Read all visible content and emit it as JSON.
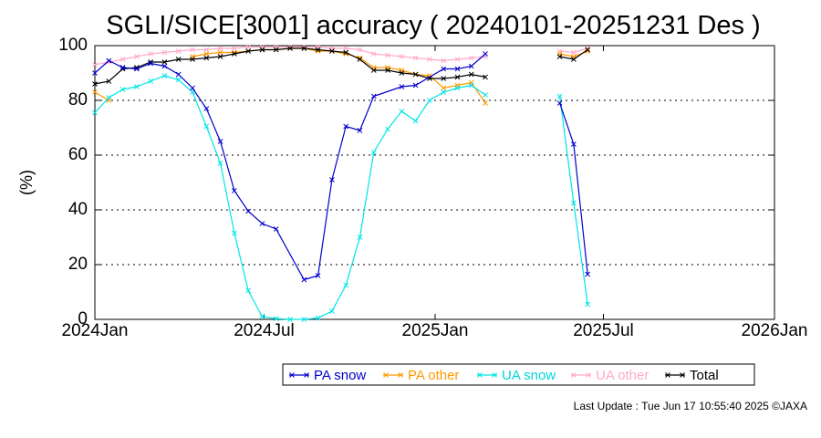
{
  "chart_data": {
    "type": "line",
    "title": "SGLI/SICE[3001] accuracy ( 20240101-20251231 Des )",
    "ylabel": "(%)",
    "xlabel": "",
    "ylim": [
      0,
      100
    ],
    "yticks": [
      0,
      20,
      40,
      60,
      80,
      100
    ],
    "xlim": [
      "2024-01-01",
      "2026-01-01"
    ],
    "xticks": [
      {
        "date": "2024-01-01",
        "label": "2024Jan"
      },
      {
        "date": "2024-07-01",
        "label": "2024Jul"
      },
      {
        "date": "2025-01-01",
        "label": "2025Jan"
      },
      {
        "date": "2025-07-01",
        "label": "2025Jul"
      },
      {
        "date": "2026-01-01",
        "label": "2026Jan"
      }
    ],
    "grid": "horizontal dotted",
    "legend_placement": "bottom-center",
    "series": [
      {
        "name": "PA snow",
        "color": "#0000cc",
        "points": [
          [
            "2024-01-01",
            90
          ],
          [
            "2024-01-16",
            94.5
          ],
          [
            "2024-01-31",
            92
          ],
          [
            "2024-02-15",
            91.5
          ],
          [
            "2024-03-01",
            93.5
          ],
          [
            "2024-03-16",
            92.5
          ],
          [
            "2024-03-31",
            89.5
          ],
          [
            "2024-04-15",
            84.5
          ],
          [
            "2024-04-30",
            77
          ],
          [
            "2024-05-15",
            65
          ],
          [
            "2024-05-30",
            47
          ],
          [
            "2024-06-14",
            39.5
          ],
          [
            "2024-06-29",
            35
          ],
          [
            "2024-07-14",
            33
          ],
          [
            "2024-08-13",
            14.5
          ],
          [
            "2024-08-28",
            16
          ],
          [
            "2024-09-12",
            51
          ],
          [
            "2024-09-27",
            70.5
          ],
          [
            "2024-10-12",
            69
          ],
          [
            "2024-10-27",
            81.5
          ],
          [
            "2024-11-26",
            85
          ],
          [
            "2024-12-11",
            85.5
          ],
          [
            "2025-01-10",
            91.5
          ],
          [
            "2025-01-25",
            91.5
          ],
          [
            "2025-02-09",
            92.5
          ],
          [
            "2025-02-24",
            97
          ],
          null,
          [
            "2025-05-15",
            79
          ],
          [
            "2025-05-30",
            64
          ],
          [
            "2025-06-14",
            16.5
          ]
        ]
      },
      {
        "name": "PA other",
        "color": "#ff9900",
        "points": [
          [
            "2024-01-01",
            83
          ],
          [
            "2024-01-16",
            80
          ],
          null,
          [
            "2024-04-15",
            96
          ],
          [
            "2024-04-30",
            97
          ],
          [
            "2024-05-15",
            97.5
          ],
          [
            "2024-05-30",
            97.5
          ],
          [
            "2024-06-14",
            98
          ],
          [
            "2024-06-29",
            98.5
          ],
          [
            "2024-07-14",
            98.5
          ],
          [
            "2024-07-29",
            99
          ],
          [
            "2024-08-13",
            99
          ],
          [
            "2024-08-28",
            98
          ],
          [
            "2024-09-12",
            98
          ],
          [
            "2024-09-27",
            97
          ],
          [
            "2024-10-12",
            95.5
          ],
          [
            "2024-10-27",
            92
          ],
          [
            "2024-11-11",
            92
          ],
          [
            "2024-11-26",
            91
          ],
          [
            "2024-12-11",
            89.5
          ],
          [
            "2024-12-26",
            89
          ],
          [
            "2025-01-10",
            84.5
          ],
          [
            "2025-01-25",
            85.5
          ],
          [
            "2025-02-09",
            86.5
          ],
          [
            "2025-02-24",
            79
          ],
          null,
          [
            "2025-05-15",
            97
          ],
          [
            "2025-05-30",
            96
          ],
          [
            "2025-06-14",
            98
          ]
        ]
      },
      {
        "name": "UA snow",
        "color": "#00e5e5",
        "points": [
          [
            "2024-01-01",
            75.5
          ],
          [
            "2024-01-16",
            81
          ],
          [
            "2024-01-31",
            84
          ],
          [
            "2024-02-15",
            85
          ],
          [
            "2024-03-01",
            87
          ],
          [
            "2024-03-16",
            89
          ],
          [
            "2024-03-31",
            87.5
          ],
          [
            "2024-04-15",
            83
          ],
          [
            "2024-04-30",
            70.5
          ],
          [
            "2024-05-15",
            57
          ],
          [
            "2024-05-30",
            31.5
          ],
          [
            "2024-06-14",
            10.5
          ],
          [
            "2024-06-29",
            1
          ],
          [
            "2024-07-14",
            0.3
          ],
          [
            "2024-07-29",
            0
          ],
          [
            "2024-08-13",
            0
          ],
          [
            "2024-08-28",
            0.5
          ],
          [
            "2024-09-12",
            3
          ],
          [
            "2024-09-27",
            12.5
          ],
          [
            "2024-10-12",
            30
          ],
          [
            "2024-10-27",
            61
          ],
          [
            "2024-11-11",
            69.5
          ],
          [
            "2024-11-26",
            76
          ],
          [
            "2024-12-11",
            72.5
          ],
          [
            "2024-12-26",
            80
          ],
          [
            "2025-01-10",
            83
          ],
          [
            "2025-01-25",
            84.5
          ],
          [
            "2025-02-09",
            85.5
          ],
          [
            "2025-02-24",
            82
          ],
          null,
          [
            "2025-05-15",
            81.5
          ],
          [
            "2025-05-30",
            42.5
          ],
          [
            "2025-06-14",
            5.5
          ]
        ]
      },
      {
        "name": "UA other",
        "color": "#ffaacc",
        "points": [
          [
            "2024-01-01",
            93
          ],
          [
            "2024-01-16",
            94
          ],
          [
            "2024-01-31",
            95
          ],
          [
            "2024-02-15",
            96
          ],
          [
            "2024-03-01",
            97
          ],
          [
            "2024-03-16",
            97.5
          ],
          [
            "2024-03-31",
            98
          ],
          [
            "2024-04-15",
            98.5
          ],
          [
            "2024-04-30",
            98.5
          ],
          [
            "2024-05-15",
            99
          ],
          [
            "2024-05-30",
            99
          ],
          [
            "2024-06-14",
            99.5
          ],
          [
            "2024-06-29",
            99.5
          ],
          [
            "2024-07-14",
            99.5
          ],
          [
            "2024-07-29",
            99.5
          ],
          [
            "2024-08-13",
            99.5
          ],
          [
            "2024-08-28",
            99.5
          ],
          [
            "2024-09-12",
            99
          ],
          [
            "2024-09-27",
            99
          ],
          [
            "2024-10-12",
            98.5
          ],
          [
            "2024-10-27",
            97
          ],
          [
            "2024-11-11",
            96.5
          ],
          [
            "2024-11-26",
            96
          ],
          [
            "2024-12-11",
            95.5
          ],
          [
            "2024-12-26",
            95
          ],
          [
            "2025-01-10",
            94.5
          ],
          [
            "2025-01-25",
            95
          ],
          [
            "2025-02-09",
            95.5
          ],
          [
            "2025-02-24",
            96
          ],
          null,
          [
            "2025-05-15",
            98
          ],
          [
            "2025-05-30",
            97.5
          ],
          [
            "2025-06-14",
            99
          ]
        ]
      },
      {
        "name": "Total",
        "color": "#000000",
        "points": [
          [
            "2024-01-01",
            86
          ],
          [
            "2024-01-16",
            87
          ],
          [
            "2024-01-31",
            91.5
          ],
          [
            "2024-02-15",
            92
          ],
          [
            "2024-03-01",
            94
          ],
          [
            "2024-03-16",
            94
          ],
          [
            "2024-03-31",
            95
          ],
          [
            "2024-04-15",
            95
          ],
          [
            "2024-04-30",
            95.5
          ],
          [
            "2024-05-15",
            96
          ],
          [
            "2024-05-30",
            97
          ],
          [
            "2024-06-14",
            98
          ],
          [
            "2024-06-29",
            98.5
          ],
          [
            "2024-07-14",
            98.5
          ],
          [
            "2024-07-29",
            99
          ],
          [
            "2024-08-13",
            99
          ],
          [
            "2024-08-28",
            98.5
          ],
          [
            "2024-09-12",
            98
          ],
          [
            "2024-09-27",
            97.5
          ],
          [
            "2024-10-12",
            95
          ],
          [
            "2024-10-27",
            91
          ],
          [
            "2024-11-11",
            91
          ],
          [
            "2024-11-26",
            90
          ],
          [
            "2024-12-11",
            89.5
          ],
          [
            "2024-12-26",
            88
          ],
          [
            "2025-01-10",
            88
          ],
          [
            "2025-01-25",
            88.5
          ],
          [
            "2025-02-09",
            89.5
          ],
          [
            "2025-02-24",
            88.5
          ],
          null,
          [
            "2025-05-15",
            96
          ],
          [
            "2025-05-30",
            95
          ],
          [
            "2025-06-14",
            98.5
          ]
        ]
      }
    ]
  },
  "footer": {
    "last_update": "Last Update : Tue Jun 17 10:55:40 2025  ©JAXA"
  }
}
